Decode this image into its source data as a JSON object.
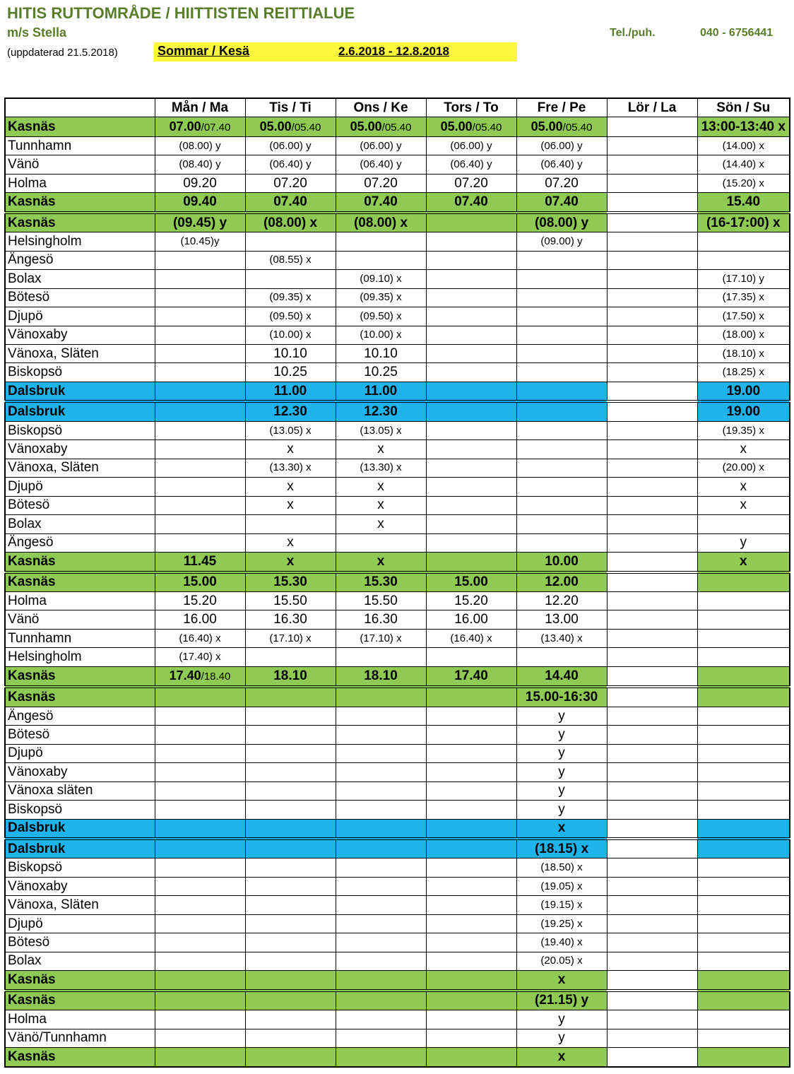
{
  "header": {
    "title": "HITIS RUTTOMRÅDE / HIITTISTEN REITTIALUE",
    "vessel": "m/s Stella",
    "tel_label": "Tel./puh.",
    "tel_number": "040 - 6756441",
    "updated": "(uppdaterad 21.5.2018)",
    "season": "Sommar / Kesä",
    "dates": "2.6.2018 - 12.8.2018"
  },
  "columns": [
    "",
    "Mån / Ma",
    "Tis / Ti",
    "Ons / Ke",
    "Tors / To",
    "Fre / Pe",
    "Lör / La",
    "Sön / Su"
  ],
  "colors": {
    "hub_green": "#8fca55",
    "hub_blue": "#1fb3ec",
    "season_yellow": "#fff93d",
    "title_green": "#5a7d2a"
  },
  "rows": [
    {
      "stop": "Kasnäs",
      "hub": "g",
      "sep": false,
      "cells": [
        [
          "07.00",
          "/07.40"
        ],
        [
          "05.00",
          "/05.40"
        ],
        [
          "05.00",
          "/05.40"
        ],
        [
          "05.00",
          "/05.40"
        ],
        [
          "05.00",
          "/05.40"
        ],
        "",
        "13:00-13:40 x"
      ]
    },
    {
      "stop": "Tunnhamn",
      "cells": [
        "(08.00) y",
        "(06.00) y",
        "(06.00) y",
        "(06.00) y",
        "(06.00) y",
        "",
        "(14.00) x"
      ]
    },
    {
      "stop": "Vänö",
      "cells": [
        "(08.40) y",
        "(06.40) y",
        "(06.40) y",
        "(06.40) y",
        "(06.40) y",
        "",
        "(14.40) x"
      ]
    },
    {
      "stop": "Holma",
      "cells": [
        "09.20",
        "07.20",
        "07.20",
        "07.20",
        "07.20",
        "",
        "(15.20) x"
      ]
    },
    {
      "stop": "Kasnäs",
      "hub": "g",
      "cells": [
        "09.40",
        "07.40",
        "07.40",
        "07.40",
        "07.40",
        "",
        "15.40"
      ]
    },
    {
      "stop": "Kasnäs",
      "hub": "g",
      "sep": true,
      "cells": [
        "(09.45) y",
        "(08.00) x",
        "(08.00) x",
        "",
        "(08.00) y",
        "",
        "(16-17:00) x"
      ]
    },
    {
      "stop": "Helsingholm",
      "cells": [
        "(10.45)y",
        "",
        "",
        "",
        "(09.00) y",
        "",
        ""
      ]
    },
    {
      "stop": "Ängesö",
      "cells": [
        "",
        "(08.55) x",
        "",
        "",
        "",
        "",
        ""
      ]
    },
    {
      "stop": "Bolax",
      "cells": [
        "",
        "",
        "(09.10) x",
        "",
        "",
        "",
        "(17.10) y"
      ]
    },
    {
      "stop": "Bötesö",
      "cells": [
        "",
        "(09.35) x",
        "(09.35) x",
        "",
        "",
        "",
        "(17.35) x"
      ]
    },
    {
      "stop": "Djupö",
      "cells": [
        "",
        "(09.50) x",
        "(09.50) x",
        "",
        "",
        "",
        "(17.50)  x"
      ]
    },
    {
      "stop": "Vänoxaby",
      "cells": [
        "",
        "(10.00) x",
        "(10.00) x",
        "",
        "",
        "",
        "(18.00) x"
      ]
    },
    {
      "stop": "Vänoxa, Släten",
      "cells": [
        "",
        "10.10",
        "10.10",
        "",
        "",
        "",
        "(18.10) x"
      ]
    },
    {
      "stop": "Biskopsö",
      "cells": [
        "",
        "10.25",
        "10.25",
        "",
        "",
        "",
        "(18.25) x"
      ]
    },
    {
      "stop": "Dalsbruk",
      "hub": "b",
      "cells": [
        "",
        "11.00",
        "11.00",
        "",
        "",
        "",
        "19.00"
      ]
    },
    {
      "stop": "Dalsbruk",
      "hub": "b",
      "sep": true,
      "cells": [
        "",
        "12.30",
        "12.30",
        "",
        "",
        "",
        "19.00"
      ]
    },
    {
      "stop": "Biskopsö",
      "cells": [
        "",
        "(13.05) x",
        "(13.05) x",
        "",
        "",
        "",
        "(19.35) x"
      ]
    },
    {
      "stop": "Vänoxaby",
      "cells": [
        "",
        "x",
        "x",
        "",
        "",
        "",
        "x"
      ]
    },
    {
      "stop": "Vänoxa, Släten",
      "cells": [
        "",
        "(13.30) x",
        "(13.30) x",
        "",
        "",
        "",
        "(20.00) x"
      ]
    },
    {
      "stop": "Djupö",
      "cells": [
        "",
        "x",
        "x",
        "",
        "",
        "",
        "x"
      ]
    },
    {
      "stop": "Bötesö",
      "cells": [
        "",
        "x",
        "x",
        "",
        "",
        "",
        "x"
      ]
    },
    {
      "stop": "Bolax",
      "cells": [
        "",
        "",
        "x",
        "",
        "",
        "",
        ""
      ]
    },
    {
      "stop": "Ängesö",
      "cells": [
        "",
        "x",
        "",
        "",
        "",
        "",
        "y"
      ]
    },
    {
      "stop": "Kasnäs",
      "hub": "g",
      "cells": [
        "11.45",
        "x",
        "x",
        "",
        "10.00",
        "",
        "x"
      ]
    },
    {
      "stop": "Kasnäs",
      "hub": "g",
      "sep": true,
      "cells": [
        "15.00",
        "15.30",
        "15.30",
        "15.00",
        "12.00",
        "",
        ""
      ]
    },
    {
      "stop": "Holma",
      "cells": [
        "15.20",
        "15.50",
        "15.50",
        "15.20",
        "12.20",
        "",
        ""
      ]
    },
    {
      "stop": "Vänö",
      "cells": [
        "16.00",
        "16.30",
        "16.30",
        "16.00",
        "13.00",
        "",
        ""
      ]
    },
    {
      "stop": "Tunnhamn",
      "cells": [
        "(16.40) x",
        "(17.10) x",
        "(17.10) x",
        "(16.40) x",
        "(13.40) x",
        "",
        ""
      ]
    },
    {
      "stop": "Helsingholm",
      "cells": [
        "(17.40) x",
        "",
        "",
        "",
        "",
        "",
        ""
      ]
    },
    {
      "stop": "Kasnäs",
      "hub": "g",
      "cells": [
        [
          "17.40",
          "/18.40"
        ],
        "18.10",
        "18.10",
        "17.40",
        "14.40",
        "",
        ""
      ]
    },
    {
      "stop": "Kasnäs",
      "hub": "g",
      "sep": true,
      "cells": [
        "",
        "",
        "",
        "",
        "15.00-16:30",
        "",
        ""
      ]
    },
    {
      "stop": "Ängesö",
      "cells": [
        "",
        "",
        "",
        "",
        "y",
        "",
        ""
      ]
    },
    {
      "stop": "Bötesö",
      "cells": [
        "",
        "",
        "",
        "",
        "y",
        "",
        ""
      ]
    },
    {
      "stop": "Djupö",
      "cells": [
        "",
        "",
        "",
        "",
        "y",
        "",
        ""
      ]
    },
    {
      "stop": "Vänoxaby",
      "cells": [
        "",
        "",
        "",
        "",
        "y",
        "",
        ""
      ]
    },
    {
      "stop": "Vänoxa släten",
      "cells": [
        "",
        "",
        "",
        "",
        "y",
        "",
        ""
      ]
    },
    {
      "stop": "Biskopsö",
      "cells": [
        "",
        "",
        "",
        "",
        "y",
        "",
        ""
      ]
    },
    {
      "stop": "Dalsbruk",
      "hub": "b",
      "cells": [
        "",
        "",
        "",
        "",
        "x",
        "",
        ""
      ]
    },
    {
      "stop": "Dalsbruk",
      "hub": "b",
      "sep": true,
      "cells": [
        "",
        "",
        "",
        "",
        "(18.15) x",
        "",
        ""
      ]
    },
    {
      "stop": "Biskopsö",
      "cells": [
        "",
        "",
        "",
        "",
        "(18.50) x",
        "",
        ""
      ]
    },
    {
      "stop": "Vänoxaby",
      "cells": [
        "",
        "",
        "",
        "",
        "(19.05) x",
        "",
        ""
      ]
    },
    {
      "stop": "Vänoxa, Släten",
      "cells": [
        "",
        "",
        "",
        "",
        "(19.15) x",
        "",
        ""
      ]
    },
    {
      "stop": "Djupö",
      "cells": [
        "",
        "",
        "",
        "",
        "(19.25) x",
        "",
        ""
      ]
    },
    {
      "stop": "Bötesö",
      "cells": [
        "",
        "",
        "",
        "",
        "(19.40) x",
        "",
        ""
      ]
    },
    {
      "stop": "Bolax",
      "cells": [
        "",
        "",
        "",
        "",
        "(20.05) x",
        "",
        ""
      ]
    },
    {
      "stop": "Kasnäs",
      "hub": "g",
      "cells": [
        "",
        "",
        "",
        "",
        "x",
        "",
        ""
      ]
    },
    {
      "stop": "Kasnäs",
      "hub": "g",
      "sep": true,
      "cells": [
        "",
        "",
        "",
        "",
        "(21.15) y",
        "",
        ""
      ]
    },
    {
      "stop": "Holma",
      "cells": [
        "",
        "",
        "",
        "",
        "y",
        "",
        ""
      ]
    },
    {
      "stop": "Vänö/Tunnhamn",
      "cells": [
        "",
        "",
        "",
        "",
        "y",
        "",
        ""
      ]
    },
    {
      "stop": "Kasnäs",
      "hub": "g",
      "cells": [
        "",
        "",
        "",
        "",
        "x",
        "",
        ""
      ]
    }
  ]
}
